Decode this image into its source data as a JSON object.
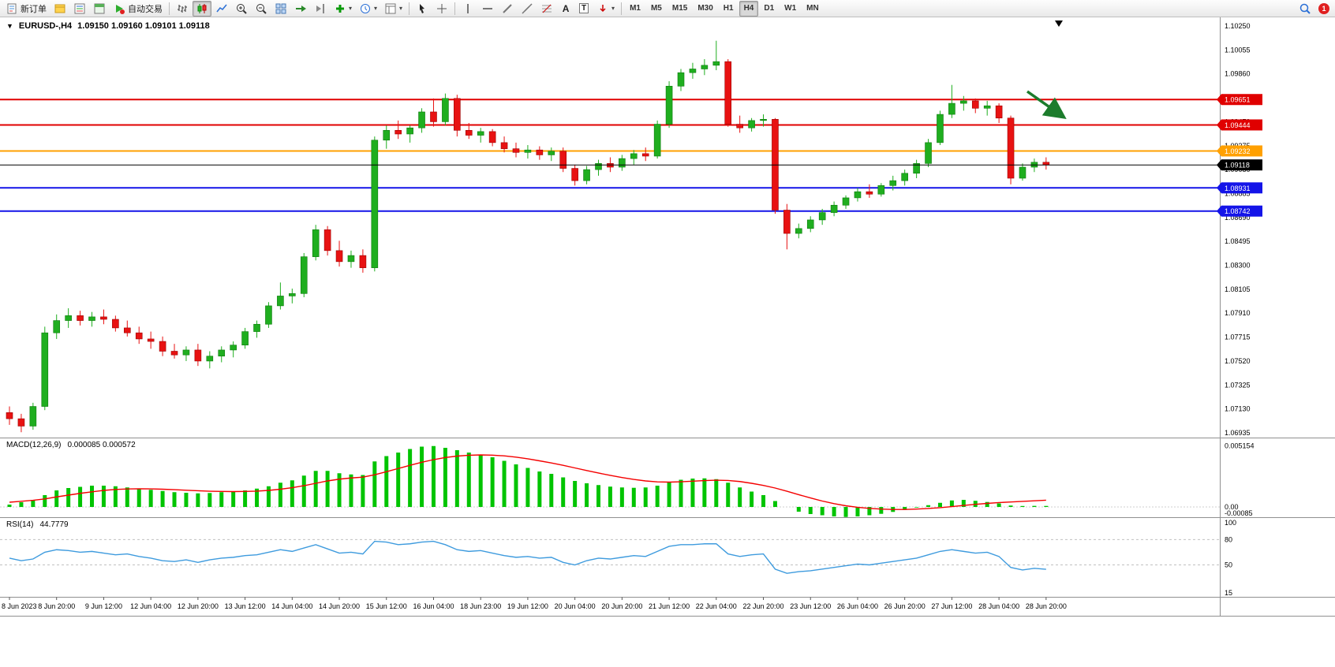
{
  "glyphs": {
    "caret": "▾",
    "symbol_caret": "▼",
    "letter_a": "A",
    "letter_t": "T"
  },
  "toolbar": {
    "new_order_label": "新订单",
    "autotrade_label": "自动交易",
    "timeframes": [
      "M1",
      "M5",
      "M15",
      "M30",
      "H1",
      "H4",
      "D1",
      "W1",
      "MN"
    ],
    "active_timeframe": "H4",
    "notification_badge": "1",
    "icons": [
      "new-order-icon",
      "profile-icon",
      "market-watch-icon",
      "data-window-icon",
      "autotrade-icon",
      "bar-chart-icon",
      "candlestick-chart-icon",
      "line-chart-icon",
      "zoom-in-icon",
      "zoom-out-icon",
      "tile-windows-icon",
      "auto-scroll-icon",
      "chart-shift-icon",
      "indicators-icon",
      "periods-icon",
      "templates-icon",
      "cursor-icon",
      "crosshair-icon",
      "vertical-line-icon",
      "horizontal-line-icon",
      "trendline-icon",
      "channel-icon",
      "fibonacci-icon",
      "text-icon",
      "text-label-icon",
      "arrows-icon",
      "search-icon",
      "notification-badge"
    ]
  },
  "header": {
    "symbol": "EURUSD-,H4",
    "ohlc": "1.09150 1.09160 1.09101 1.09118"
  },
  "indicators": {
    "macd": {
      "title": "MACD(12,26,9)",
      "values": "0.000085 0.000572"
    },
    "rsi": {
      "title": "RSI(14)",
      "value": "44.7779"
    }
  },
  "chart_data": {
    "type": "candlestick",
    "title": "EURUSD-,H4",
    "symbol": "EURUSD-",
    "timeframe": "H4",
    "quote": {
      "open": "1.09150",
      "high": "1.09160",
      "low": "1.09101",
      "close": "1.09118"
    },
    "ylim": [
      1.06935,
      1.1025
    ],
    "colors": {
      "up": "#1FAE1F",
      "down": "#E81212",
      "macd_hist": "#00C400",
      "macd_signal": "#F40000",
      "rsi_line": "#3E9BDE",
      "line_red": "#E00000",
      "line_orange": "#FFA000",
      "line_blue": "#1414E8",
      "current": "#000000",
      "annotation": "#1C7C2C"
    },
    "price_scale": [
      "1.10250",
      "1.10055",
      "1.09860",
      "1.09665",
      "1.09470",
      "1.09275",
      "1.09080",
      "1.08885",
      "1.08690",
      "1.08495",
      "1.08300",
      "1.08105",
      "1.07910",
      "1.07715",
      "1.07520",
      "1.07325",
      "1.07130",
      "1.06935"
    ],
    "time_labels": [
      "8 Jun 2023",
      "8 Jun 20:00",
      "9 Jun 12:00",
      "12 Jun 04:00",
      "12 Jun 20:00",
      "13 Jun 12:00",
      "14 Jun 04:00",
      "14 Jun 20:00",
      "15 Jun 12:00",
      "16 Jun 04:00",
      "18 Jun 23:00",
      "19 Jun 12:00",
      "20 Jun 04:00",
      "20 Jun 20:00",
      "21 Jun 12:00",
      "22 Jun 04:00",
      "22 Jun 20:00",
      "23 Jun 12:00",
      "26 Jun 04:00",
      "26 Jun 20:00",
      "27 Jun 12:00",
      "28 Jun 04:00",
      "28 Jun 20:00"
    ],
    "hlines": [
      {
        "price": 1.09651,
        "label": "1.09651",
        "color": "#E00000"
      },
      {
        "price": 1.09444,
        "label": "1.09444",
        "color": "#E00000"
      },
      {
        "price": 1.09232,
        "label": "1.09232",
        "color": "#FFA000"
      },
      {
        "price": 1.08931,
        "label": "1.08931",
        "color": "#1414E8"
      },
      {
        "price": 1.08742,
        "label": "1.08742",
        "color": "#1414E8"
      }
    ],
    "current_price": {
      "price": 1.09118,
      "label": "1.09118",
      "color": "#000000"
    },
    "candles": [
      [
        1.071,
        1.0715,
        1.07,
        1.0705
      ],
      [
        1.0705,
        1.0709,
        1.0694,
        1.0699
      ],
      [
        1.0699,
        1.0718,
        1.0696,
        1.0715
      ],
      [
        1.0715,
        1.078,
        1.0712,
        1.0775
      ],
      [
        1.0775,
        1.079,
        1.077,
        1.0785
      ],
      [
        1.0785,
        1.0795,
        1.0779,
        1.0789
      ],
      [
        1.0789,
        1.0793,
        1.0781,
        1.0785
      ],
      [
        1.0785,
        1.0792,
        1.078,
        1.0788
      ],
      [
        1.0788,
        1.0794,
        1.0782,
        1.0786
      ],
      [
        1.0786,
        1.0789,
        1.0776,
        1.0779
      ],
      [
        1.0779,
        1.0785,
        1.0772,
        1.0775
      ],
      [
        1.0775,
        1.078,
        1.0766,
        1.077
      ],
      [
        1.077,
        1.0776,
        1.0762,
        1.0768
      ],
      [
        1.0768,
        1.0772,
        1.0756,
        1.076
      ],
      [
        1.076,
        1.0766,
        1.0754,
        1.0757
      ],
      [
        1.0757,
        1.0764,
        1.0752,
        1.0761
      ],
      [
        1.0761,
        1.0766,
        1.0748,
        1.0752
      ],
      [
        1.0752,
        1.076,
        1.0746,
        1.0756
      ],
      [
        1.0756,
        1.0764,
        1.0751,
        1.0761
      ],
      [
        1.0761,
        1.0768,
        1.0755,
        1.0765
      ],
      [
        1.0765,
        1.0779,
        1.0762,
        1.0776
      ],
      [
        1.0776,
        1.0785,
        1.0771,
        1.0782
      ],
      [
        1.0782,
        1.08,
        1.0779,
        1.0797
      ],
      [
        1.0797,
        1.0816,
        1.0794,
        1.0805
      ],
      [
        1.0805,
        1.0811,
        1.0799,
        1.0807
      ],
      [
        1.0807,
        1.084,
        1.0804,
        1.0837
      ],
      [
        1.0837,
        1.0863,
        1.0834,
        1.0859
      ],
      [
        1.0859,
        1.0862,
        1.0838,
        1.0842
      ],
      [
        1.0842,
        1.085,
        1.0829,
        1.0833
      ],
      [
        1.0833,
        1.0842,
        1.0828,
        1.0838
      ],
      [
        1.0838,
        1.0843,
        1.0824,
        1.0828
      ],
      [
        1.0828,
        1.0935,
        1.0825,
        1.0932
      ],
      [
        1.0932,
        1.0944,
        1.0925,
        1.094
      ],
      [
        1.094,
        1.0948,
        1.0933,
        1.0937
      ],
      [
        1.0937,
        1.0944,
        1.093,
        1.0942
      ],
      [
        1.0942,
        1.0958,
        1.0938,
        1.0955
      ],
      [
        1.0955,
        1.0966,
        1.0943,
        1.0947
      ],
      [
        1.0947,
        1.097,
        1.0944,
        1.0966
      ],
      [
        1.0966,
        1.0969,
        1.0935,
        1.094
      ],
      [
        1.094,
        1.0946,
        1.0933,
        1.0936
      ],
      [
        1.0936,
        1.0942,
        1.093,
        1.0939
      ],
      [
        1.0939,
        1.0941,
        1.0927,
        1.093
      ],
      [
        1.093,
        1.0935,
        1.0922,
        1.0925
      ],
      [
        1.0925,
        1.093,
        1.0918,
        1.0922
      ],
      [
        1.0922,
        1.0928,
        1.0917,
        1.0924
      ],
      [
        1.0924,
        1.0927,
        1.0916,
        1.092
      ],
      [
        1.092,
        1.0926,
        1.0915,
        1.0923
      ],
      [
        1.0923,
        1.0926,
        1.0906,
        1.0909
      ],
      [
        1.0909,
        1.0912,
        1.0895,
        1.0899
      ],
      [
        1.0899,
        1.0911,
        1.0896,
        1.0908
      ],
      [
        1.0908,
        1.0916,
        1.0903,
        1.0913
      ],
      [
        1.0913,
        1.0918,
        1.0906,
        1.091
      ],
      [
        1.091,
        1.092,
        1.0907,
        1.0917
      ],
      [
        1.0917,
        1.0924,
        1.0912,
        1.0921
      ],
      [
        1.0921,
        1.0926,
        1.0915,
        1.0919
      ],
      [
        1.0919,
        1.0948,
        1.0917,
        1.0945
      ],
      [
        1.0945,
        1.098,
        1.0942,
        1.0976
      ],
      [
        1.0976,
        1.099,
        1.0972,
        1.0987
      ],
      [
        1.0987,
        1.0995,
        1.0982,
        1.099
      ],
      [
        1.099,
        1.0998,
        1.0985,
        1.0993
      ],
      [
        1.0993,
        1.1013,
        1.0989,
        1.0996
      ],
      [
        1.0996,
        1.0998,
        1.0943,
        1.0945
      ],
      [
        1.0945,
        1.0952,
        1.0938,
        1.0942
      ],
      [
        1.0942,
        1.095,
        1.0939,
        1.0948
      ],
      [
        1.0948,
        1.0953,
        1.0943,
        1.0949
      ],
      [
        1.0949,
        1.095,
        1.0872,
        1.0875
      ],
      [
        1.0875,
        1.088,
        1.0843,
        1.0856
      ],
      [
        1.0856,
        1.0864,
        1.0852,
        1.086
      ],
      [
        1.086,
        1.087,
        1.0857,
        1.0867
      ],
      [
        1.0867,
        1.0876,
        1.0863,
        1.0873
      ],
      [
        1.0873,
        1.0882,
        1.087,
        1.0879
      ],
      [
        1.0879,
        1.0887,
        1.0876,
        1.0885
      ],
      [
        1.0885,
        1.0893,
        1.0882,
        1.089
      ],
      [
        1.089,
        1.0896,
        1.0885,
        1.0888
      ],
      [
        1.0888,
        1.0897,
        1.0886,
        1.0895
      ],
      [
        1.0895,
        1.0903,
        1.0891,
        1.0899
      ],
      [
        1.0899,
        1.0908,
        1.0895,
        1.0905
      ],
      [
        1.0905,
        1.0916,
        1.0901,
        1.0913
      ],
      [
        1.0913,
        1.0933,
        1.091,
        1.093
      ],
      [
        1.093,
        1.0956,
        1.0928,
        1.0953
      ],
      [
        1.0953,
        1.0977,
        1.095,
        1.0962
      ],
      [
        1.0962,
        1.0968,
        1.0956,
        1.0964
      ],
      [
        1.0964,
        1.0966,
        1.0954,
        1.0958
      ],
      [
        1.0958,
        1.0964,
        1.0952,
        1.096
      ],
      [
        1.096,
        1.0962,
        1.0946,
        1.095
      ],
      [
        1.095,
        1.0952,
        1.0896,
        1.0901
      ],
      [
        1.0901,
        1.0913,
        1.0899,
        1.091
      ],
      [
        1.091,
        1.0917,
        1.0906,
        1.0914
      ],
      [
        1.0914,
        1.0918,
        1.0908,
        1.09118
      ]
    ],
    "macd": {
      "title": "MACD(12,26,9)",
      "main_value": 8.5e-05,
      "signal_value": 0.000572,
      "scale_labels": [
        "0.005154",
        "0.00",
        "-0.00085"
      ],
      "histogram": [
        0.0002,
        0.0004,
        0.0006,
        0.001,
        0.0014,
        0.0016,
        0.0017,
        0.0018,
        0.0018,
        0.00175,
        0.00165,
        0.00155,
        0.00145,
        0.00135,
        0.00125,
        0.0012,
        0.00115,
        0.00118,
        0.00125,
        0.0013,
        0.0014,
        0.00155,
        0.00175,
        0.00205,
        0.00225,
        0.00265,
        0.00305,
        0.00305,
        0.00285,
        0.00275,
        0.0027,
        0.00385,
        0.0043,
        0.0046,
        0.0049,
        0.0051,
        0.00515,
        0.005,
        0.0048,
        0.0046,
        0.0044,
        0.0042,
        0.0039,
        0.0036,
        0.0033,
        0.003,
        0.0028,
        0.0025,
        0.0022,
        0.002,
        0.00185,
        0.00172,
        0.00165,
        0.00162,
        0.00165,
        0.0018,
        0.0021,
        0.0023,
        0.0024,
        0.00242,
        0.00235,
        0.00205,
        0.00165,
        0.0013,
        0.001,
        0.0005,
        0.0,
        -0.0004,
        -0.0006,
        -0.0007,
        -0.0008,
        -0.00085,
        -0.0008,
        -0.0007,
        -0.00058,
        -0.00042,
        -0.00025,
        -5e-05,
        0.00015,
        0.00035,
        0.00055,
        0.0006,
        0.00052,
        0.00042,
        0.0003,
        0.00012,
        8e-05,
        9e-05,
        8.5e-05
      ],
      "signal": [
        0.0004,
        0.00048,
        0.00056,
        0.00068,
        0.00085,
        0.001,
        0.00115,
        0.00128,
        0.0014,
        0.00148,
        0.00152,
        0.00154,
        0.00153,
        0.0015,
        0.00146,
        0.00141,
        0.00137,
        0.00133,
        0.00131,
        0.0013,
        0.00131,
        0.00134,
        0.0014,
        0.0015,
        0.00163,
        0.0018,
        0.002,
        0.0022,
        0.00235,
        0.00245,
        0.00252,
        0.00272,
        0.00298,
        0.00325,
        0.00352,
        0.00378,
        0.004,
        0.00418,
        0.0043,
        0.00437,
        0.0044,
        0.00438,
        0.00432,
        0.00421,
        0.00407,
        0.0039,
        0.00372,
        0.00352,
        0.0033,
        0.00308,
        0.00287,
        0.00267,
        0.00249,
        0.00233,
        0.0022,
        0.00212,
        0.0021,
        0.00213,
        0.00218,
        0.00223,
        0.00226,
        0.00224,
        0.00215,
        0.002,
        0.00182,
        0.0016,
        0.00133,
        0.00104,
        0.00076,
        0.0005,
        0.00028,
        0.0001,
        -3e-05,
        -0.00012,
        -0.00018,
        -0.00021,
        -0.00021,
        -0.00018,
        -0.00013,
        -6e-05,
        3e-05,
        0.00013,
        0.00022,
        0.0003,
        0.00037,
        0.00042,
        0.00047,
        0.00052,
        0.000572
      ]
    },
    "rsi": {
      "title": "RSI(14)",
      "current_value": 44.7779,
      "scale_labels": [
        "100",
        "80",
        "50",
        "15"
      ],
      "levels": [
        80,
        50
      ],
      "values": [
        58,
        55,
        57,
        65,
        68,
        67,
        65,
        66,
        64,
        62,
        63,
        60,
        58,
        55,
        54,
        56,
        53,
        56,
        58,
        59,
        61,
        62,
        65,
        68,
        66,
        70,
        74,
        69,
        64,
        65,
        63,
        78,
        77,
        74,
        75,
        77,
        78,
        74,
        68,
        66,
        67,
        64,
        61,
        59,
        60,
        58,
        59,
        53,
        50,
        55,
        58,
        57,
        59,
        61,
        60,
        66,
        72,
        74,
        74,
        75,
        75,
        63,
        60,
        62,
        63,
        45,
        40,
        42,
        43,
        45,
        47,
        49,
        51,
        50,
        52,
        54,
        56,
        58,
        62,
        66,
        68,
        66,
        64,
        65,
        60,
        47,
        44,
        46,
        44.7779
      ]
    },
    "annotation": {
      "type": "arrow",
      "color": "#1C7C2C",
      "from": [
        1302,
        116
      ],
      "to": [
        1346,
        147
      ]
    }
  }
}
